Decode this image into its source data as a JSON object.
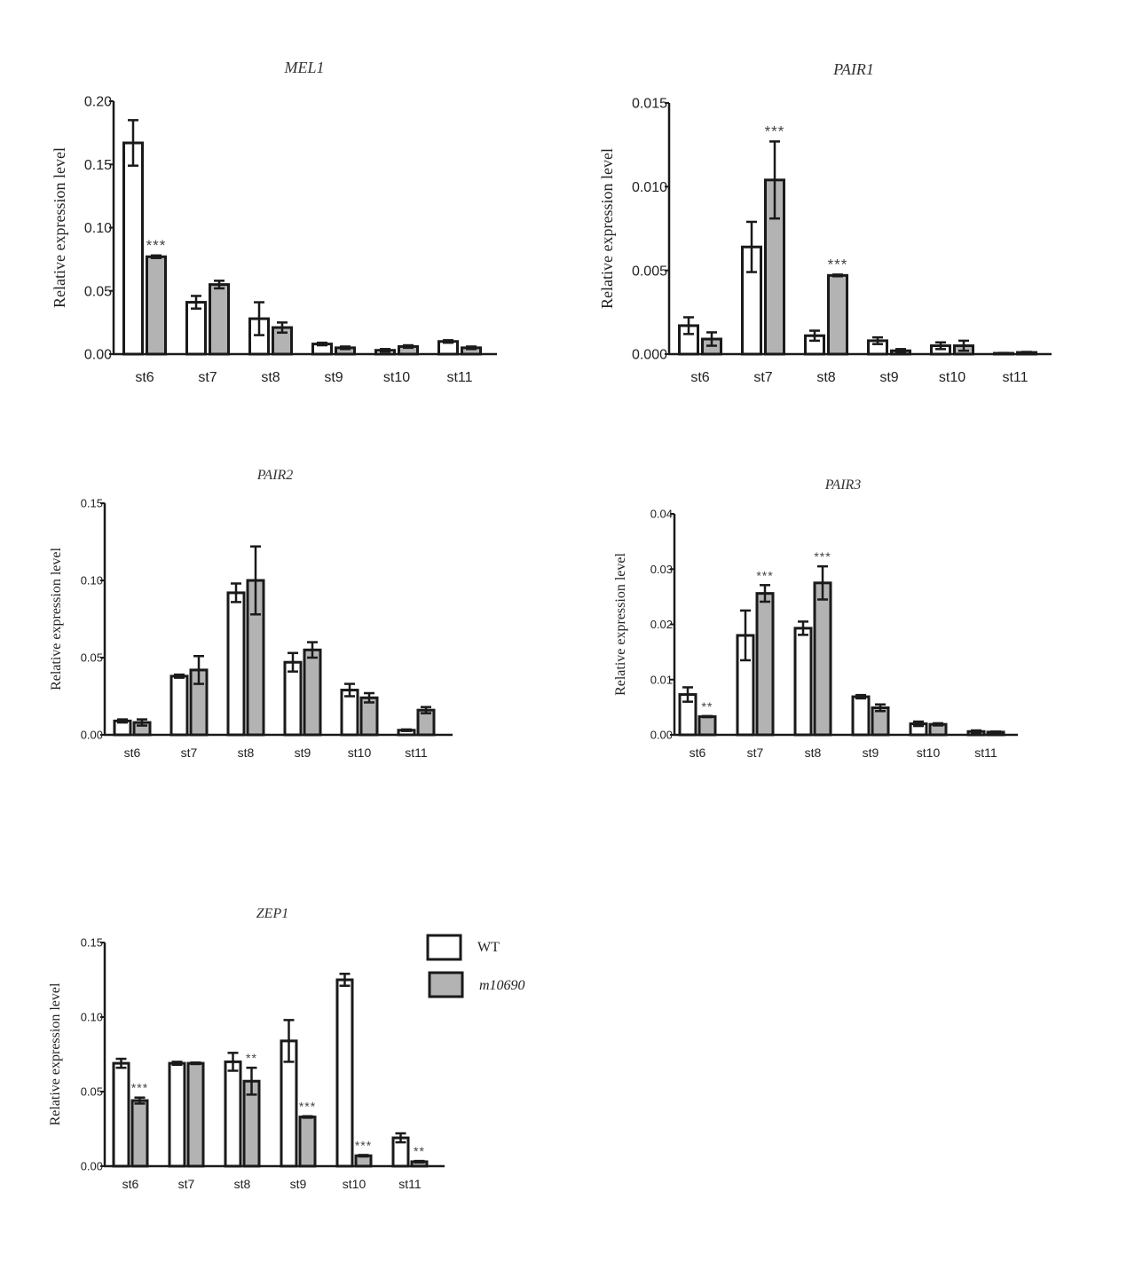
{
  "legend": {
    "items": [
      {
        "label": "WT",
        "italic": false,
        "color": "#ffffff"
      },
      {
        "label": "m10690",
        "italic": true,
        "color": "#b3b3b3"
      }
    ]
  },
  "colors": {
    "wt": "#ffffff",
    "mutant": "#b3b3b3",
    "stroke": "#1a1a1a"
  },
  "chart_data": [
    {
      "type": "bar",
      "title": "MEL1",
      "ylabel": "Relative expression level",
      "categories": [
        "st6",
        "st7",
        "st8",
        "st9",
        "st10",
        "st11"
      ],
      "ylim": [
        0,
        0.2
      ],
      "yticks": [
        "0.00",
        "0.05",
        "0.10",
        "0.15",
        "0.20"
      ],
      "series": [
        {
          "name": "WT",
          "values": [
            0.167,
            0.041,
            0.028,
            0.008,
            0.003,
            0.01
          ],
          "errors": [
            0.018,
            0.005,
            0.013,
            0.001,
            0.001,
            0.001
          ]
        },
        {
          "name": "m10690",
          "values": [
            0.077,
            0.055,
            0.021,
            0.005,
            0.006,
            0.005
          ],
          "errors": [
            0.001,
            0.003,
            0.004,
            0.001,
            0.001,
            0.001
          ]
        }
      ],
      "significance": [
        "***",
        "",
        "",
        "",
        "",
        ""
      ]
    },
    {
      "type": "bar",
      "title": "PAIR1",
      "ylabel": "Relative expression level",
      "categories": [
        "st6",
        "st7",
        "st8",
        "st9",
        "st10",
        "st11"
      ],
      "ylim": [
        0,
        0.015
      ],
      "yticks": [
        "0.000",
        "0.005",
        "0.010",
        "0.015"
      ],
      "series": [
        {
          "name": "WT",
          "values": [
            0.0017,
            0.0064,
            0.0011,
            0.0008,
            0.0005,
            5e-05
          ],
          "errors": [
            0.0005,
            0.0015,
            0.0003,
            0.0002,
            0.0002,
            2e-05
          ]
        },
        {
          "name": "m10690",
          "values": [
            0.0009,
            0.0104,
            0.0047,
            0.0002,
            0.0005,
            0.0001
          ],
          "errors": [
            0.0004,
            0.0023,
            5e-05,
            0.0001,
            0.0003,
            3e-05
          ]
        }
      ],
      "significance": [
        "",
        "***",
        "***",
        "",
        "",
        ""
      ]
    },
    {
      "type": "bar",
      "title": "PAIR2",
      "ylabel": "Relative expression level",
      "categories": [
        "st6",
        "st7",
        "st8",
        "st9",
        "st10",
        "st11"
      ],
      "ylim": [
        0,
        0.15
      ],
      "yticks": [
        "0.00",
        "0.05",
        "0.10",
        "0.15"
      ],
      "series": [
        {
          "name": "WT",
          "values": [
            0.009,
            0.038,
            0.092,
            0.047,
            0.029,
            0.003
          ],
          "errors": [
            0.001,
            0.001,
            0.006,
            0.006,
            0.004,
            0.0005
          ]
        },
        {
          "name": "m10690",
          "values": [
            0.008,
            0.042,
            0.1,
            0.055,
            0.024,
            0.016
          ],
          "errors": [
            0.002,
            0.009,
            0.022,
            0.005,
            0.003,
            0.002
          ]
        }
      ],
      "significance": [
        "",
        "",
        "",
        "",
        "",
        ""
      ]
    },
    {
      "type": "bar",
      "title": "PAIR3",
      "ylabel": "Relative expression level",
      "categories": [
        "st6",
        "st7",
        "st8",
        "st9",
        "st10",
        "st11"
      ],
      "ylim": [
        0,
        0.04
      ],
      "yticks": [
        "0.00",
        "0.01",
        "0.02",
        "0.03",
        "0.04"
      ],
      "series": [
        {
          "name": "WT",
          "values": [
            0.0073,
            0.018,
            0.0193,
            0.0069,
            0.002,
            0.0006
          ],
          "errors": [
            0.0013,
            0.0045,
            0.0012,
            0.0003,
            0.0004,
            0.0002
          ]
        },
        {
          "name": "m10690",
          "values": [
            0.0033,
            0.0256,
            0.0275,
            0.0049,
            0.0019,
            0.0005
          ],
          "errors": [
            0.0001,
            0.0015,
            0.003,
            0.0006,
            0.0002,
            0.0001
          ]
        }
      ],
      "significance": [
        "**",
        "***",
        "***",
        "",
        "",
        ""
      ]
    },
    {
      "type": "bar",
      "title": "ZEP1",
      "ylabel": "Relative expression level",
      "categories": [
        "st6",
        "st7",
        "st8",
        "st9",
        "st10",
        "st11"
      ],
      "ylim": [
        0,
        0.15
      ],
      "yticks": [
        "0.00",
        "0.05",
        "0.10",
        "0.15"
      ],
      "series": [
        {
          "name": "WT",
          "values": [
            0.069,
            0.069,
            0.07,
            0.084,
            0.125,
            0.019
          ],
          "errors": [
            0.003,
            0.001,
            0.006,
            0.014,
            0.004,
            0.003
          ]
        },
        {
          "name": "m10690",
          "values": [
            0.044,
            0.069,
            0.057,
            0.033,
            0.007,
            0.003
          ],
          "errors": [
            0.002,
            0.0005,
            0.009,
            0.0005,
            0.0005,
            0.0005
          ]
        }
      ],
      "significance": [
        "***",
        "",
        "**",
        "***",
        "***",
        "**"
      ]
    }
  ]
}
